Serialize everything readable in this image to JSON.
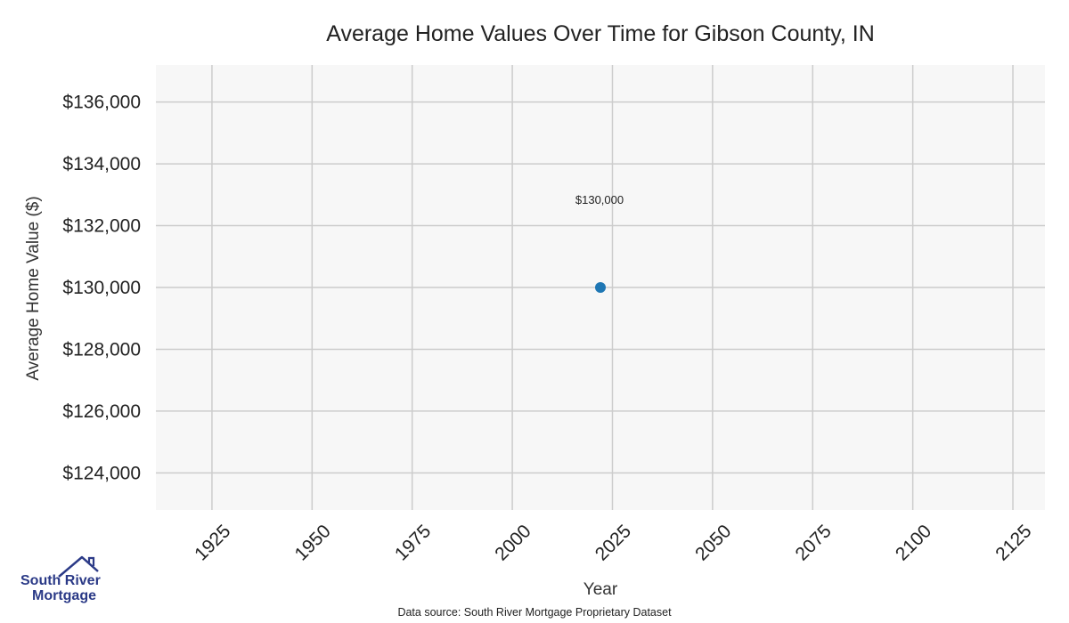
{
  "chart_data": {
    "type": "scatter",
    "title": "Average Home Values Over Time for Gibson County, IN",
    "xlabel": "Year",
    "ylabel": "Average Home Value ($)",
    "xlim": [
      1911,
      2133
    ],
    "ylim": [
      122800,
      137200
    ],
    "x_ticks": [
      1925,
      1950,
      1975,
      2000,
      2025,
      2050,
      2075,
      2100,
      2125
    ],
    "y_ticks": [
      124000,
      126000,
      128000,
      130000,
      132000,
      134000,
      136000
    ],
    "y_tick_labels": [
      "$124,000",
      "$126,000",
      "$128,000",
      "$130,000",
      "$132,000",
      "$134,000",
      "$136,000"
    ],
    "grid": true,
    "series": [
      {
        "points": [
          {
            "x": 2022,
            "y": 130000,
            "label": "$130,000"
          }
        ]
      }
    ],
    "colors": {
      "point": "#1f77b4",
      "plot_bg": "#f7f7f7",
      "grid": "#cccccc"
    }
  },
  "source_text": "Data source: South River Mortgage Proprietary Dataset",
  "logo": {
    "line1": "South River",
    "line2": "Mortgage",
    "color": "#2b3a87"
  }
}
